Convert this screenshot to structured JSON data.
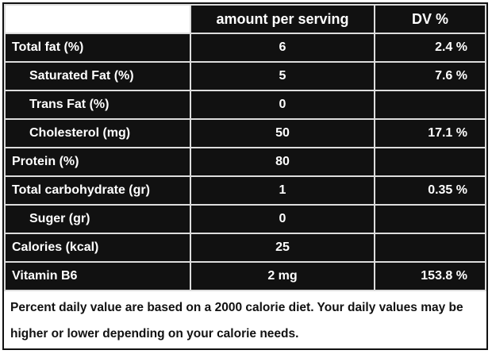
{
  "table": {
    "header": [
      "amount per serving",
      "DV %"
    ],
    "rows": [
      [
        "Total fat (%)",
        "6",
        "2.4 %"
      ],
      [
        "Saturated Fat (%)",
        "5",
        "7.6 %"
      ],
      [
        "Trans Fat (%)",
        "0"
      ],
      [
        "Cholesterol (mg)",
        "50",
        "17.1 %"
      ],
      [
        "Protein (%)",
        "80"
      ],
      [
        "Total carbohydrate (gr)",
        "1",
        "0.35 %"
      ],
      [
        "Suger (gr)",
        "0"
      ],
      [
        "Calories (kcal)",
        "25"
      ],
      [
        "Vitamin B6",
        "2 mg",
        "153.8 %"
      ]
    ]
  },
  "footnote": "Percent daily value are based on a 2000 calorie diet. Your daily values may be higher or lower depending on your calorie needs."
}
